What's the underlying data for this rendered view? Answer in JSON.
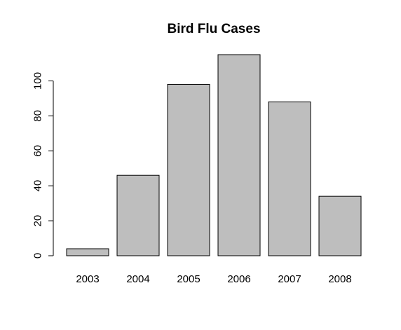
{
  "chart_data": {
    "type": "bar",
    "title": "Bird Flu Cases",
    "xlabel": "",
    "ylabel": "",
    "categories": [
      "2003",
      "2004",
      "2005",
      "2006",
      "2007",
      "2008"
    ],
    "values": [
      4,
      46,
      98,
      115,
      88,
      34
    ],
    "ylim": [
      0,
      115
    ],
    "yticks": [
      0,
      20,
      40,
      60,
      80,
      100
    ],
    "grid": false,
    "legend": "none",
    "colors": {
      "bar_fill": "#bebebe",
      "bar_stroke": "#000000"
    }
  }
}
